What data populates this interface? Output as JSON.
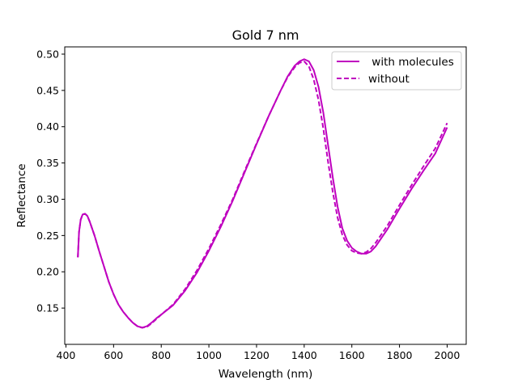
{
  "chart_data": {
    "type": "line",
    "title": "Gold 7 nm",
    "xlabel": "Wavelength (nm)",
    "ylabel": "Reflectance",
    "xlim": [
      395,
      2080
    ],
    "ylim": [
      0.1,
      0.51
    ],
    "xticks": [
      400,
      600,
      800,
      1000,
      1200,
      1400,
      1600,
      1800,
      2000
    ],
    "yticks": [
      0.15,
      0.2,
      0.25,
      0.3,
      0.35,
      0.4,
      0.45,
      0.5
    ],
    "ytick_labels": [
      "0.15",
      "0.20",
      "0.25",
      "0.30",
      "0.35",
      "0.40",
      "0.45",
      "0.50"
    ],
    "grid": false,
    "legend_position": "top-right",
    "color": "#bf00bf",
    "series": [
      {
        "name": " with molecules",
        "style": "solid",
        "points": [
          [
            450,
            0.22
          ],
          [
            455,
            0.255
          ],
          [
            462,
            0.272
          ],
          [
            470,
            0.279
          ],
          [
            480,
            0.28
          ],
          [
            490,
            0.277
          ],
          [
            500,
            0.269
          ],
          [
            520,
            0.25
          ],
          [
            540,
            0.228
          ],
          [
            560,
            0.207
          ],
          [
            580,
            0.186
          ],
          [
            600,
            0.169
          ],
          [
            620,
            0.155
          ],
          [
            640,
            0.145
          ],
          [
            660,
            0.137
          ],
          [
            680,
            0.13
          ],
          [
            700,
            0.125
          ],
          [
            720,
            0.123
          ],
          [
            740,
            0.125
          ],
          [
            760,
            0.13
          ],
          [
            780,
            0.136
          ],
          [
            800,
            0.141
          ],
          [
            850,
            0.154
          ],
          [
            900,
            0.174
          ],
          [
            950,
            0.199
          ],
          [
            1000,
            0.229
          ],
          [
            1050,
            0.262
          ],
          [
            1100,
            0.298
          ],
          [
            1150,
            0.337
          ],
          [
            1200,
            0.376
          ],
          [
            1250,
            0.414
          ],
          [
            1300,
            0.449
          ],
          [
            1330,
            0.469
          ],
          [
            1360,
            0.484
          ],
          [
            1380,
            0.49
          ],
          [
            1400,
            0.493
          ],
          [
            1420,
            0.49
          ],
          [
            1440,
            0.478
          ],
          [
            1460,
            0.455
          ],
          [
            1480,
            0.42
          ],
          [
            1500,
            0.375
          ],
          [
            1520,
            0.33
          ],
          [
            1540,
            0.29
          ],
          [
            1560,
            0.26
          ],
          [
            1580,
            0.243
          ],
          [
            1600,
            0.233
          ],
          [
            1620,
            0.228
          ],
          [
            1640,
            0.225
          ],
          [
            1660,
            0.225
          ],
          [
            1680,
            0.228
          ],
          [
            1700,
            0.235
          ],
          [
            1750,
            0.259
          ],
          [
            1800,
            0.287
          ],
          [
            1850,
            0.314
          ],
          [
            1900,
            0.339
          ],
          [
            1950,
            0.363
          ],
          [
            2000,
            0.399
          ]
        ]
      },
      {
        "name": "without",
        "style": "dashed",
        "points": [
          [
            450,
            0.22
          ],
          [
            455,
            0.255
          ],
          [
            462,
            0.272
          ],
          [
            470,
            0.279
          ],
          [
            480,
            0.28
          ],
          [
            490,
            0.277
          ],
          [
            500,
            0.269
          ],
          [
            520,
            0.25
          ],
          [
            540,
            0.228
          ],
          [
            560,
            0.207
          ],
          [
            580,
            0.186
          ],
          [
            600,
            0.169
          ],
          [
            620,
            0.155
          ],
          [
            640,
            0.145
          ],
          [
            660,
            0.137
          ],
          [
            680,
            0.13
          ],
          [
            700,
            0.125
          ],
          [
            720,
            0.123
          ],
          [
            740,
            0.124
          ],
          [
            760,
            0.129
          ],
          [
            780,
            0.135
          ],
          [
            800,
            0.141
          ],
          [
            850,
            0.155
          ],
          [
            900,
            0.176
          ],
          [
            950,
            0.202
          ],
          [
            1000,
            0.232
          ],
          [
            1050,
            0.265
          ],
          [
            1100,
            0.3
          ],
          [
            1150,
            0.339
          ],
          [
            1200,
            0.377
          ],
          [
            1250,
            0.414
          ],
          [
            1300,
            0.449
          ],
          [
            1330,
            0.468
          ],
          [
            1360,
            0.482
          ],
          [
            1380,
            0.488
          ],
          [
            1400,
            0.49
          ],
          [
            1420,
            0.483
          ],
          [
            1440,
            0.465
          ],
          [
            1460,
            0.437
          ],
          [
            1480,
            0.398
          ],
          [
            1500,
            0.352
          ],
          [
            1520,
            0.31
          ],
          [
            1540,
            0.275
          ],
          [
            1560,
            0.251
          ],
          [
            1580,
            0.237
          ],
          [
            1600,
            0.229
          ],
          [
            1620,
            0.226
          ],
          [
            1640,
            0.225
          ],
          [
            1660,
            0.227
          ],
          [
            1680,
            0.232
          ],
          [
            1700,
            0.24
          ],
          [
            1750,
            0.264
          ],
          [
            1800,
            0.292
          ],
          [
            1850,
            0.319
          ],
          [
            1900,
            0.345
          ],
          [
            1950,
            0.37
          ],
          [
            2000,
            0.405
          ]
        ]
      }
    ]
  }
}
